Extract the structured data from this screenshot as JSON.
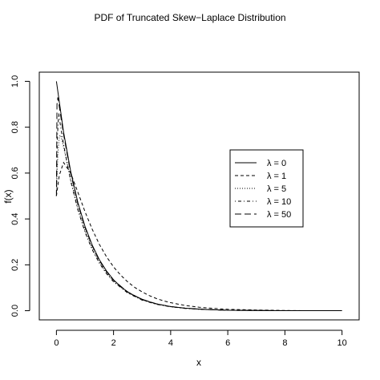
{
  "chart_data": {
    "type": "line",
    "title": "PDF of Truncated Skew−Laplace Distribution",
    "xlabel": "x",
    "ylabel": "f(x)",
    "xlim": [
      -0.6,
      10.6
    ],
    "ylim": [
      -0.04,
      1.04
    ],
    "x_ticks": [
      0,
      2,
      4,
      6,
      8,
      10
    ],
    "x_tick_labels": [
      "0",
      "2",
      "4",
      "6",
      "8",
      "10"
    ],
    "y_ticks": [
      0.0,
      0.2,
      0.4,
      0.6,
      0.8,
      1.0
    ],
    "y_tick_labels": [
      "0.0",
      "0.2",
      "0.4",
      "0.6",
      "0.8",
      "1.0"
    ],
    "grid": false,
    "legend_position": "right",
    "series": [
      {
        "name": "λ = 0",
        "legend_symbol": "λ",
        "legend_value": "0",
        "dash": "solid",
        "x": [
          0,
          0.25,
          0.5,
          0.75,
          1,
          1.25,
          1.5,
          1.75,
          2,
          2.25,
          2.5,
          2.75,
          3,
          3.25,
          3.5,
          3.75,
          4,
          4.5,
          5,
          5.5,
          6,
          7,
          8,
          9,
          10
        ],
        "y": [
          1.0,
          0.779,
          0.607,
          0.472,
          0.368,
          0.287,
          0.223,
          0.174,
          0.135,
          0.105,
          0.082,
          0.064,
          0.05,
          0.039,
          0.03,
          0.024,
          0.018,
          0.011,
          0.007,
          0.004,
          0.002,
          0.001,
          0.0,
          0.0,
          0.0
        ]
      },
      {
        "name": "λ = 1",
        "legend_symbol": "λ",
        "legend_value": "1",
        "dash": "dashed",
        "x": [
          0,
          0.1,
          0.25,
          0.5,
          0.75,
          1,
          1.25,
          1.5,
          1.75,
          2,
          2.25,
          2.5,
          2.75,
          3,
          3.25,
          3.5,
          3.75,
          4,
          4.5,
          5,
          5.5,
          6,
          7,
          8,
          9,
          10
        ],
        "y": [
          0.5,
          0.59,
          0.646,
          0.6,
          0.517,
          0.432,
          0.356,
          0.29,
          0.236,
          0.191,
          0.155,
          0.125,
          0.101,
          0.082,
          0.066,
          0.053,
          0.043,
          0.035,
          0.023,
          0.015,
          0.01,
          0.006,
          0.003,
          0.001,
          0.0,
          0.0
        ]
      },
      {
        "name": "λ = 5",
        "legend_symbol": "λ",
        "legend_value": "5",
        "dash": "dotted",
        "x": [
          0,
          0.05,
          0.1,
          0.15,
          0.25,
          0.5,
          0.75,
          1,
          1.25,
          1.5,
          1.75,
          2,
          2.5,
          3,
          3.5,
          4,
          4.5,
          5,
          5.5,
          6,
          7,
          8,
          9,
          10
        ],
        "y": [
          0.5,
          0.68,
          0.76,
          0.765,
          0.715,
          0.571,
          0.447,
          0.349,
          0.272,
          0.212,
          0.165,
          0.128,
          0.078,
          0.047,
          0.029,
          0.017,
          0.011,
          0.006,
          0.004,
          0.002,
          0.001,
          0.0,
          0.0,
          0.0
        ]
      },
      {
        "name": "λ = 10",
        "legend_symbol": "λ",
        "legend_value": "10",
        "dash": "dotdash",
        "x": [
          0,
          0.03,
          0.08,
          0.15,
          0.25,
          0.5,
          0.75,
          1,
          1.25,
          1.5,
          1.75,
          2,
          2.5,
          3,
          3.5,
          4,
          4.5,
          5,
          5.5,
          6,
          7,
          8,
          9,
          10
        ],
        "y": [
          0.5,
          0.75,
          0.86,
          0.8,
          0.726,
          0.565,
          0.44,
          0.343,
          0.267,
          0.208,
          0.162,
          0.126,
          0.077,
          0.046,
          0.028,
          0.017,
          0.01,
          0.006,
          0.004,
          0.002,
          0.001,
          0.0,
          0.0,
          0.0
        ]
      },
      {
        "name": "λ = 50",
        "legend_symbol": "λ",
        "legend_value": "50",
        "dash": "longdash",
        "x": [
          0,
          0.02,
          0.05,
          0.1,
          0.25,
          0.5,
          0.75,
          1,
          1.25,
          1.5,
          1.75,
          2,
          2.5,
          3,
          3.5,
          4,
          4.5,
          5,
          5.5,
          6,
          7,
          8,
          9,
          10
        ],
        "y": [
          0.5,
          0.9,
          0.93,
          0.89,
          0.769,
          0.599,
          0.466,
          0.363,
          0.283,
          0.22,
          0.171,
          0.133,
          0.081,
          0.049,
          0.03,
          0.018,
          0.011,
          0.007,
          0.004,
          0.002,
          0.001,
          0.0,
          0.0,
          0.0
        ]
      }
    ]
  }
}
